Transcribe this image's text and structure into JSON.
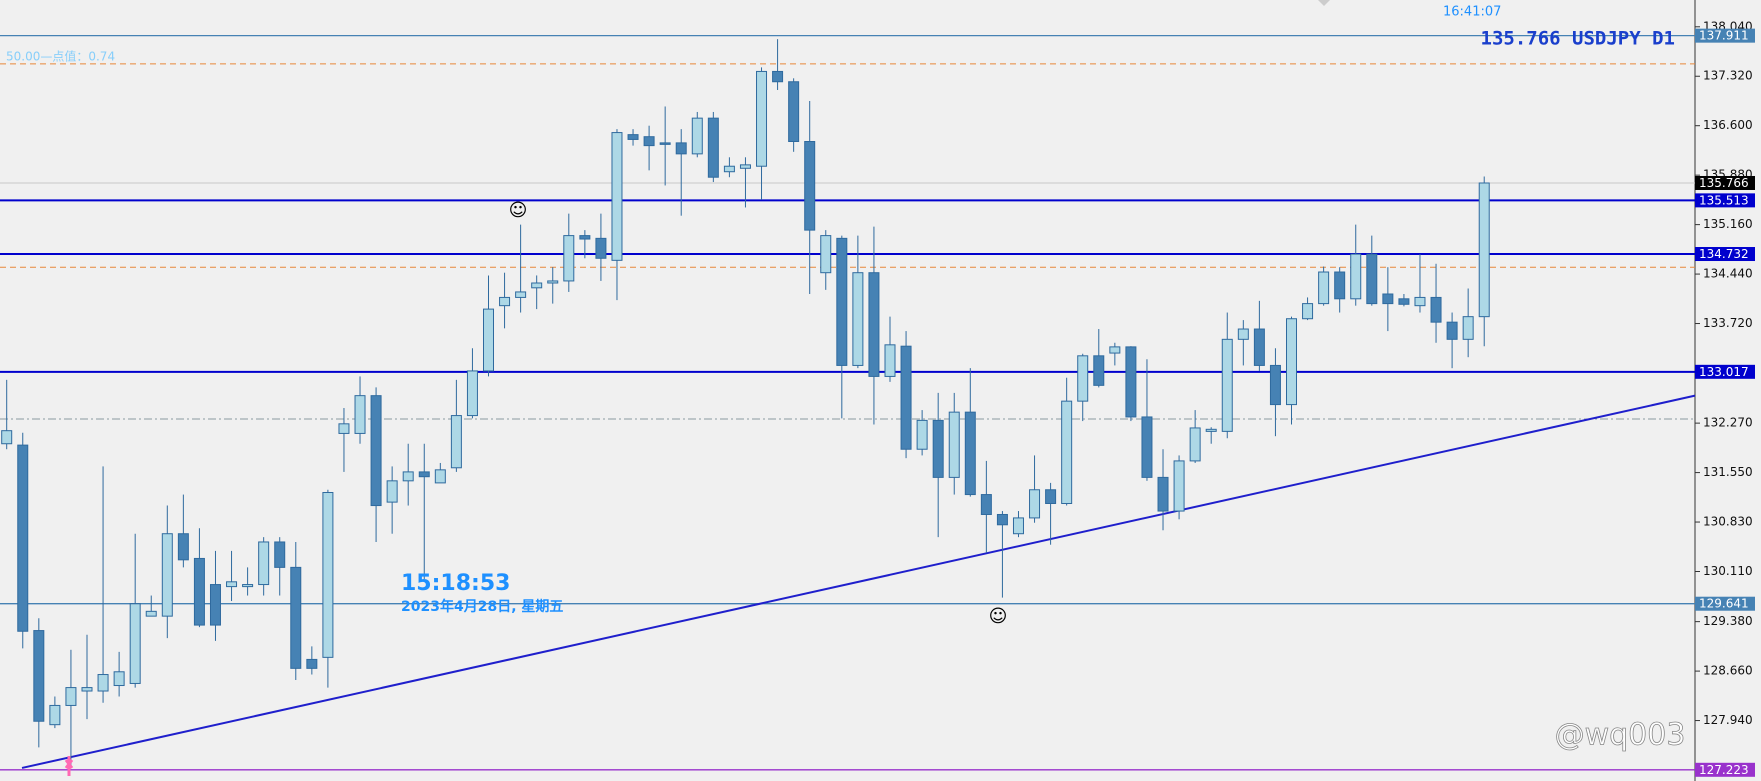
{
  "chart_data": {
    "type": "candlestick",
    "clock": "16:41:07",
    "symbol_text": "135.766 USDJPY D1",
    "ruler": "50.00—点值：0.74",
    "time_label": "15:18:53",
    "date_label": "2023年4月28日, 星期五",
    "watermark": "@wq003",
    "ylim": [
      127.06,
      138.43
    ],
    "yticks": [
      {
        "value": 138.04,
        "label": "138.040"
      },
      {
        "value": 137.32,
        "label": "137.320"
      },
      {
        "value": 136.6,
        "label": "136.600"
      },
      {
        "value": 135.88,
        "label": "135.880"
      },
      {
        "value": 135.16,
        "label": "135.160"
      },
      {
        "value": 134.44,
        "label": "134.440"
      },
      {
        "value": 133.72,
        "label": "133.720"
      },
      {
        "value": 132.27,
        "label": "132.270"
      },
      {
        "value": 131.55,
        "label": "131.550"
      },
      {
        "value": 130.83,
        "label": "130.830"
      },
      {
        "value": 130.11,
        "label": "130.110"
      },
      {
        "value": 129.38,
        "label": "129.380"
      },
      {
        "value": 128.66,
        "label": "128.660"
      },
      {
        "value": 127.94,
        "label": "127.940"
      }
    ],
    "up_color": "#add8e6",
    "down_color": "#4682b4",
    "outline_color": "#2f6a9e",
    "open": [
      131.97,
      131.95,
      129.25,
      127.88,
      128.16,
      128.37,
      128.37,
      128.45,
      128.48,
      129.46,
      129.46,
      130.66,
      130.3,
      129.92,
      129.89,
      129.89,
      129.92,
      130.54,
      130.17,
      128.83,
      128.86,
      132.12,
      132.12,
      132.67,
      131.12,
      131.43,
      131.56,
      131.4,
      131.62,
      132.38,
      133.03,
      133.98,
      134.1,
      134.24,
      134.31,
      134.34,
      135.0,
      134.96,
      134.64,
      136.47,
      136.44,
      136.35,
      136.35,
      136.19,
      136.71,
      135.93,
      135.98,
      136.01,
      137.39,
      137.24,
      136.37,
      134.46,
      134.96,
      133.11,
      134.46,
      132.95,
      133.39,
      131.89,
      132.31,
      131.48,
      132.43,
      131.23,
      130.94,
      130.66,
      130.89,
      131.3,
      131.1,
      132.59,
      133.25,
      133.29,
      133.38,
      132.36,
      131.48,
      130.99,
      131.72,
      132.15,
      132.15,
      133.49,
      133.64,
      133.11,
      132.54,
      133.79,
      134.01,
      134.47,
      134.08,
      134.73,
      134.15,
      134.08,
      133.98,
      134.1,
      133.74,
      133.49,
      133.82
    ],
    "high": [
      132.9,
      132.13,
      129.43,
      128.29,
      128.97,
      129.19,
      131.64,
      128.94,
      130.66,
      129.76,
      131.07,
      131.23,
      130.74,
      130.41,
      130.41,
      130.17,
      130.61,
      130.61,
      130.54,
      129.02,
      131.3,
      132.49,
      132.95,
      132.79,
      131.64,
      131.97,
      131.97,
      131.69,
      132.9,
      133.36,
      134.42,
      134.46,
      135.16,
      134.42,
      134.54,
      135.32,
      135.08,
      135.32,
      136.55,
      136.55,
      136.6,
      136.88,
      136.55,
      136.8,
      136.8,
      136.14,
      136.14,
      137.45,
      137.86,
      137.29,
      136.96,
      135.08,
      135.0,
      135.0,
      135.13,
      133.82,
      133.61,
      132.46,
      132.71,
      132.71,
      133.07,
      131.72,
      130.99,
      130.99,
      131.8,
      131.4,
      132.93,
      133.28,
      133.64,
      133.44,
      133.39,
      133.2,
      131.89,
      131.8,
      132.46,
      132.21,
      133.88,
      133.77,
      134.05,
      133.36,
      133.82,
      134.1,
      134.55,
      134.54,
      135.16,
      135.0,
      134.54,
      134.15,
      134.73,
      134.59,
      133.88,
      134.23,
      135.86
    ],
    "low": [
      131.89,
      128.99,
      127.55,
      127.83,
      127.3,
      127.96,
      128.2,
      128.29,
      128.42,
      129.46,
      129.14,
      130.17,
      129.3,
      129.1,
      129.68,
      129.76,
      129.76,
      129.76,
      128.53,
      128.61,
      128.42,
      131.56,
      131.97,
      130.54,
      130.66,
      131.07,
      130.0,
      131.4,
      131.56,
      132.34,
      132.95,
      133.65,
      133.88,
      133.93,
      134.01,
      134.18,
      134.67,
      134.34,
      134.06,
      136.31,
      135.95,
      135.73,
      135.29,
      136.14,
      135.78,
      135.85,
      135.41,
      135.52,
      137.12,
      136.22,
      134.15,
      134.21,
      132.34,
      133.07,
      132.25,
      132.87,
      131.76,
      131.8,
      130.61,
      131.23,
      131.2,
      130.38,
      129.73,
      130.61,
      130.82,
      130.5,
      131.07,
      132.3,
      132.79,
      133.11,
      132.3,
      131.43,
      130.71,
      130.87,
      131.69,
      131.97,
      132.05,
      133.11,
      133.03,
      132.08,
      132.25,
      133.77,
      133.98,
      133.88,
      133.98,
      133.98,
      133.61,
      133.97,
      133.88,
      133.44,
      133.07,
      133.23,
      133.39
    ],
    "close": [
      132.16,
      129.24,
      127.93,
      128.16,
      128.42,
      128.42,
      128.61,
      128.65,
      129.64,
      129.53,
      130.66,
      130.28,
      129.33,
      129.33,
      129.96,
      129.92,
      130.54,
      130.17,
      128.7,
      128.7,
      131.26,
      132.26,
      132.67,
      131.07,
      131.43,
      131.56,
      131.49,
      131.59,
      132.38,
      133.03,
      133.93,
      134.1,
      134.18,
      134.31,
      134.34,
      135.0,
      134.95,
      134.67,
      136.5,
      136.4,
      136.31,
      136.34,
      136.19,
      136.71,
      135.85,
      136.01,
      136.03,
      137.39,
      137.24,
      136.37,
      135.08,
      135.0,
      133.11,
      134.46,
      132.95,
      133.41,
      131.89,
      132.31,
      131.48,
      132.43,
      131.23,
      130.94,
      130.79,
      130.89,
      131.3,
      131.1,
      132.59,
      133.25,
      132.82,
      133.38,
      132.36,
      131.48,
      130.99,
      131.72,
      132.2,
      132.18,
      133.49,
      133.64,
      133.11,
      132.54,
      133.79,
      134.01,
      134.47,
      134.08,
      134.73,
      134.01,
      134.01,
      134.0,
      134.1,
      133.74,
      133.49,
      133.82,
      135.766
    ],
    "levels": [
      {
        "value": 137.911,
        "color": "#4682b4"
      },
      {
        "value": 135.513,
        "color": "#0000cd"
      },
      {
        "value": 134.732,
        "color": "#0000cd"
      },
      {
        "value": 133.017,
        "color": "#0000cd"
      },
      {
        "value": 129.641,
        "color": "#4682b4"
      },
      {
        "value": 127.223,
        "color": "#9932cc"
      }
    ],
    "dashed_levels": [
      {
        "value": 137.5,
        "color": "#e8883a"
      },
      {
        "value": 134.54,
        "color": "#e8883a"
      },
      {
        "value": 132.33,
        "color": "#8a9aa0"
      }
    ],
    "trendline": {
      "values": [
        127.25,
        132.67
      ],
      "color": "#1f1fcc"
    }
  }
}
